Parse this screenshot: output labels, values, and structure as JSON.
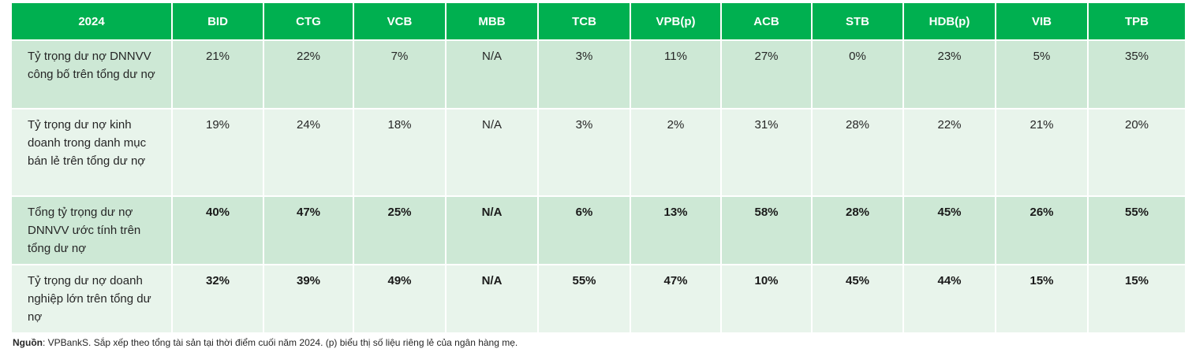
{
  "table": {
    "headers": [
      "2024",
      "BID",
      "CTG",
      "VCB",
      "MBB",
      "TCB",
      "VPB(p)",
      "ACB",
      "STB",
      "HDB(p)",
      "VIB",
      "TPB"
    ],
    "rows": [
      {
        "label": "Tỷ trọng dư nợ DNNVV công bố trên tổng dư nợ",
        "bold": false,
        "values": [
          "21%",
          "22%",
          "7%",
          "N/A",
          "3%",
          "11%",
          "27%",
          "0%",
          "23%",
          "5%",
          "35%"
        ]
      },
      {
        "label": "Tỷ trọng dư nợ kinh doanh trong danh mục bán lẻ trên tổng dư nợ",
        "bold": false,
        "values": [
          "19%",
          "24%",
          "18%",
          "N/A",
          "3%",
          "2%",
          "31%",
          "28%",
          "22%",
          "21%",
          "20%"
        ]
      },
      {
        "label": "Tổng tỷ trọng dư nợ DNNVV ước tính trên tổng dư nợ",
        "bold": true,
        "values": [
          "40%",
          "47%",
          "25%",
          "N/A",
          "6%",
          "13%",
          "58%",
          "28%",
          "45%",
          "26%",
          "55%"
        ]
      },
      {
        "label": "Tỷ trọng dư nợ doanh nghiệp lớn trên tổng dư nợ",
        "bold": true,
        "values": [
          "32%",
          "39%",
          "49%",
          "N/A",
          "55%",
          "47%",
          "10%",
          "45%",
          "44%",
          "15%",
          "15%"
        ]
      }
    ]
  },
  "footnote": {
    "label": "Nguồn",
    "text": ": VPBankS. Sắp xếp theo tổng tài sản tại thời điểm cuối năm 2024. (p) biểu thị số liệu riêng lẻ của ngân hàng mẹ."
  }
}
